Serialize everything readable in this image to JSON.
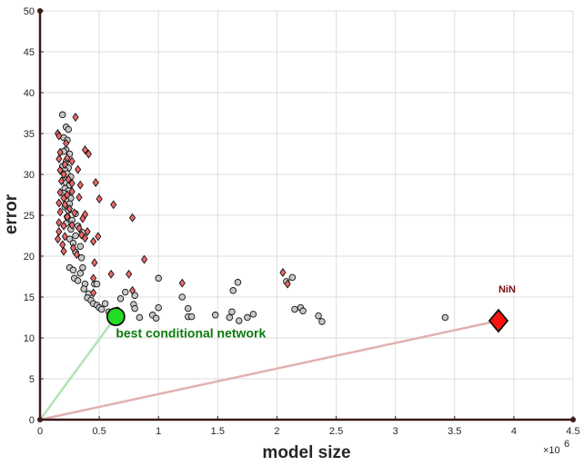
{
  "chart_data": {
    "type": "scatter",
    "title": "",
    "xlabel": "model size",
    "ylabel": "error",
    "x_exponent_label": "×10",
    "x_exponent_power": "6",
    "xlim": [
      0,
      4.5
    ],
    "ylim": [
      0,
      50
    ],
    "x_ticks": [
      0,
      0.5,
      1,
      1.5,
      2,
      2.5,
      3,
      3.5,
      4,
      4.5
    ],
    "x_tick_labels": [
      "0",
      "0.5",
      "1",
      "1.5",
      "2",
      "2.5",
      "3",
      "3.5",
      "4",
      "4.5"
    ],
    "y_ticks": [
      0,
      5,
      10,
      15,
      20,
      25,
      30,
      35,
      40,
      45,
      50
    ],
    "y_tick_labels": [
      "0",
      "5",
      "10",
      "15",
      "20",
      "25",
      "30",
      "35",
      "40",
      "45",
      "50"
    ],
    "grid": true,
    "colors": {
      "gray_point": "#c8c8c8",
      "red_point": "#ef6a6a",
      "best": "#22dd22",
      "nin": "#ff1111",
      "best_line": "#b4e2b4",
      "nin_line": "#e2b1b1",
      "best_label": "#0a7a0a",
      "nin_label": "#7a0e12",
      "axis": "#3a1a1a"
    },
    "series": [
      {
        "name": "gray",
        "marker": "circle",
        "points": [
          [
            0.19,
            37.3
          ],
          [
            0.22,
            35.8
          ],
          [
            0.24,
            35.5
          ],
          [
            0.2,
            34.5
          ],
          [
            0.23,
            34.2
          ],
          [
            0.22,
            33.0
          ],
          [
            0.2,
            32.8
          ],
          [
            0.25,
            32.5
          ],
          [
            0.22,
            31.6
          ],
          [
            0.19,
            31.0
          ],
          [
            0.24,
            30.8
          ],
          [
            0.21,
            30.5
          ],
          [
            0.23,
            30.1
          ],
          [
            0.26,
            29.7
          ],
          [
            0.2,
            29.3
          ],
          [
            0.22,
            29.0
          ],
          [
            0.25,
            28.7
          ],
          [
            0.21,
            28.3
          ],
          [
            0.24,
            28.0
          ],
          [
            0.2,
            27.7
          ],
          [
            0.23,
            27.4
          ],
          [
            0.26,
            27.1
          ],
          [
            0.22,
            26.8
          ],
          [
            0.25,
            26.4
          ],
          [
            0.21,
            26.0
          ],
          [
            0.24,
            25.6
          ],
          [
            0.3,
            25.2
          ],
          [
            0.23,
            24.8
          ],
          [
            0.27,
            24.4
          ],
          [
            0.22,
            24.0
          ],
          [
            0.32,
            23.7
          ],
          [
            0.26,
            23.3
          ],
          [
            0.36,
            22.9
          ],
          [
            0.3,
            22.5
          ],
          [
            0.25,
            22.1
          ],
          [
            0.28,
            21.6
          ],
          [
            0.34,
            21.2
          ],
          [
            0.3,
            20.5
          ],
          [
            0.35,
            19.8
          ],
          [
            0.25,
            18.6
          ],
          [
            0.28,
            18.3
          ],
          [
            0.36,
            18.6
          ],
          [
            0.34,
            17.9
          ],
          [
            0.29,
            17.3
          ],
          [
            0.32,
            17.0
          ],
          [
            0.38,
            16.6
          ],
          [
            0.46,
            16.6
          ],
          [
            0.48,
            16.6
          ],
          [
            0.37,
            16.0
          ],
          [
            0.41,
            15.4
          ],
          [
            0.4,
            14.9
          ],
          [
            0.43,
            14.6
          ],
          [
            0.45,
            14.2
          ],
          [
            0.48,
            14.0
          ],
          [
            0.5,
            13.7
          ],
          [
            0.55,
            14.2
          ],
          [
            0.52,
            13.5
          ],
          [
            0.58,
            13.2
          ],
          [
            0.65,
            13.4
          ],
          [
            0.68,
            14.8
          ],
          [
            0.72,
            15.6
          ],
          [
            0.8,
            15.2
          ],
          [
            0.79,
            14.1
          ],
          [
            0.8,
            13.6
          ],
          [
            0.84,
            12.5
          ],
          [
            0.95,
            12.8
          ],
          [
            1.0,
            17.3
          ],
          [
            1.0,
            13.7
          ],
          [
            0.98,
            12.4
          ],
          [
            1.2,
            15.0
          ],
          [
            1.25,
            13.6
          ],
          [
            1.25,
            12.6
          ],
          [
            1.28,
            12.6
          ],
          [
            1.48,
            12.8
          ],
          [
            1.6,
            12.5
          ],
          [
            1.62,
            13.2
          ],
          [
            1.63,
            15.8
          ],
          [
            1.67,
            16.8
          ],
          [
            1.68,
            12.1
          ],
          [
            1.75,
            12.5
          ],
          [
            1.8,
            12.9
          ],
          [
            2.08,
            16.9
          ],
          [
            2.13,
            17.4
          ],
          [
            2.15,
            13.5
          ],
          [
            2.2,
            13.7
          ],
          [
            2.22,
            13.3
          ],
          [
            2.35,
            12.7
          ],
          [
            2.38,
            12.0
          ],
          [
            3.42,
            12.5
          ]
        ]
      },
      {
        "name": "red",
        "marker": "diamond",
        "points": [
          [
            0.15,
            35.0
          ],
          [
            0.3,
            37.0
          ],
          [
            0.16,
            34.7
          ],
          [
            0.22,
            33.8
          ],
          [
            0.17,
            32.7
          ],
          [
            0.23,
            32.0
          ],
          [
            0.38,
            33.0
          ],
          [
            0.41,
            32.5
          ],
          [
            0.16,
            31.9
          ],
          [
            0.21,
            31.2
          ],
          [
            0.27,
            31.6
          ],
          [
            0.17,
            30.5
          ],
          [
            0.2,
            30.0
          ],
          [
            0.24,
            29.4
          ],
          [
            0.32,
            30.6
          ],
          [
            0.18,
            29.2
          ],
          [
            0.27,
            28.9
          ],
          [
            0.34,
            28.7
          ],
          [
            0.47,
            29.0
          ],
          [
            0.17,
            27.8
          ],
          [
            0.2,
            27.1
          ],
          [
            0.23,
            27.5
          ],
          [
            0.27,
            27.9
          ],
          [
            0.33,
            27.2
          ],
          [
            0.5,
            27.0
          ],
          [
            0.16,
            26.5
          ],
          [
            0.21,
            26.3
          ],
          [
            0.25,
            25.8
          ],
          [
            0.29,
            25.3
          ],
          [
            0.62,
            26.3
          ],
          [
            0.17,
            25.4
          ],
          [
            0.23,
            24.8
          ],
          [
            0.38,
            25.1
          ],
          [
            0.36,
            24.6
          ],
          [
            0.78,
            24.7
          ],
          [
            0.16,
            24.1
          ],
          [
            0.2,
            23.7
          ],
          [
            0.27,
            23.8
          ],
          [
            0.33,
            23.4
          ],
          [
            0.4,
            23.0
          ],
          [
            0.16,
            23.0
          ],
          [
            0.21,
            22.4
          ],
          [
            0.35,
            22.6
          ],
          [
            0.38,
            22.2
          ],
          [
            0.49,
            22.4
          ],
          [
            0.15,
            22.1
          ],
          [
            0.19,
            21.4
          ],
          [
            0.28,
            21.0
          ],
          [
            0.45,
            21.8
          ],
          [
            0.2,
            20.6
          ],
          [
            0.31,
            20.2
          ],
          [
            0.88,
            19.6
          ],
          [
            0.46,
            19.2
          ],
          [
            0.6,
            17.8
          ],
          [
            0.75,
            17.8
          ],
          [
            0.45,
            17.3
          ],
          [
            1.2,
            16.7
          ],
          [
            2.05,
            18.0
          ],
          [
            2.09,
            16.6
          ],
          [
            0.78,
            15.8
          ],
          [
            0.45,
            15.5
          ]
        ]
      }
    ],
    "highlights": [
      {
        "name": "best conditional network",
        "label": "best conditional network",
        "x": 0.64,
        "y": 12.6,
        "marker": "circle"
      },
      {
        "name": "NiN",
        "label": "NiN",
        "x": 3.87,
        "y": 12.1,
        "marker": "diamond"
      }
    ],
    "lines": [
      {
        "name": "best",
        "from": [
          0,
          0
        ],
        "to": [
          0.64,
          12.6
        ]
      },
      {
        "name": "nin",
        "from": [
          0,
          0
        ],
        "to": [
          3.87,
          12.1
        ]
      }
    ]
  }
}
